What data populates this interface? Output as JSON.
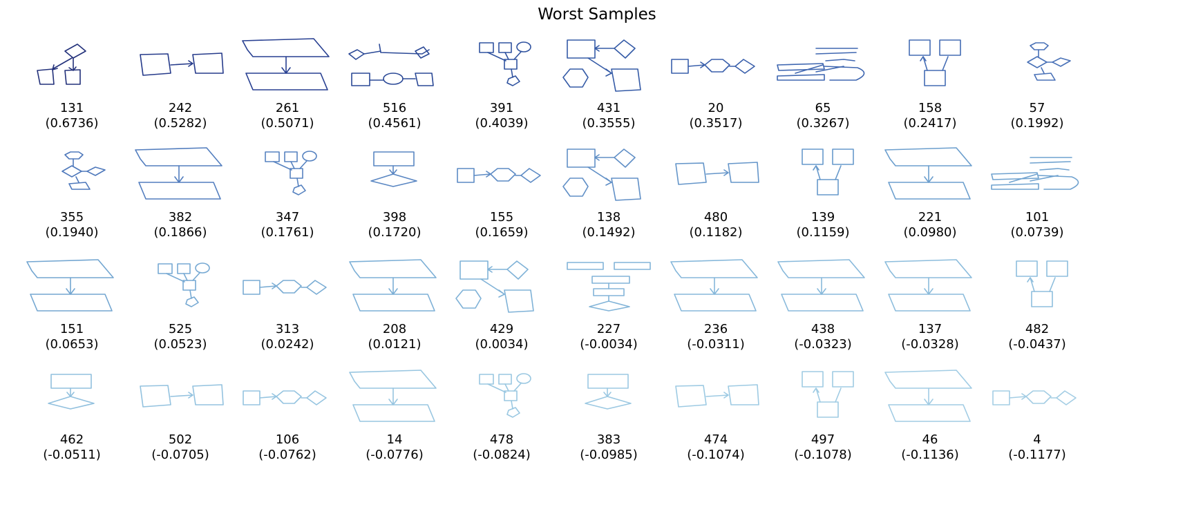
{
  "title": "Worst Samples",
  "samples": [
    {
      "id": "131",
      "score": "(0.6736)",
      "color": "#22307a",
      "shape": "a"
    },
    {
      "id": "242",
      "score": "(0.5282)",
      "color": "#253a8a",
      "shape": "b"
    },
    {
      "id": "261",
      "score": "(0.5071)",
      "color": "#273f91",
      "shape": "c"
    },
    {
      "id": "516",
      "score": "(0.4561)",
      "color": "#2a4896",
      "shape": "d"
    },
    {
      "id": "391",
      "score": "(0.4039)",
      "color": "#2f529f",
      "shape": "e"
    },
    {
      "id": "431",
      "score": "(0.3555)",
      "color": "#345aa6",
      "shape": "f"
    },
    {
      "id": "20",
      "score": "(0.3517)",
      "color": "#395fab",
      "shape": "g"
    },
    {
      "id": "65",
      "score": "(0.3267)",
      "color": "#3e66b0",
      "shape": "h"
    },
    {
      "id": "158",
      "score": "(0.2417)",
      "color": "#446cb4",
      "shape": "i"
    },
    {
      "id": "57",
      "score": "(0.1992)",
      "color": "#4971b7",
      "shape": "j"
    },
    {
      "id": "355",
      "score": "(0.1940)",
      "color": "#4e78bb",
      "shape": "j"
    },
    {
      "id": "382",
      "score": "(0.1866)",
      "color": "#527dbe",
      "shape": "c"
    },
    {
      "id": "347",
      "score": "(0.1761)",
      "color": "#5682c0",
      "shape": "e"
    },
    {
      "id": "398",
      "score": "(0.1720)",
      "color": "#5986c2",
      "shape": "k"
    },
    {
      "id": "155",
      "score": "(0.1659)",
      "color": "#5c8ac4",
      "shape": "g"
    },
    {
      "id": "138",
      "score": "(0.1492)",
      "color": "#608fc6",
      "shape": "f"
    },
    {
      "id": "480",
      "score": "(0.1182)",
      "color": "#6495c9",
      "shape": "b"
    },
    {
      "id": "139",
      "score": "(0.1159)",
      "color": "#6799cb",
      "shape": "i"
    },
    {
      "id": "221",
      "score": "(0.0980)",
      "color": "#6b9ecd",
      "shape": "c"
    },
    {
      "id": "101",
      "score": "(0.0739)",
      "color": "#6fa2cf",
      "shape": "h"
    },
    {
      "id": "151",
      "score": "(0.0653)",
      "color": "#73a6d1",
      "shape": "c"
    },
    {
      "id": "525",
      "score": "(0.0523)",
      "color": "#76a9d3",
      "shape": "e"
    },
    {
      "id": "313",
      "score": "(0.0242)",
      "color": "#79acd4",
      "shape": "g"
    },
    {
      "id": "208",
      "score": "(0.0121)",
      "color": "#7cafd6",
      "shape": "c"
    },
    {
      "id": "429",
      "score": "(0.0034)",
      "color": "#7fb2d7",
      "shape": "f"
    },
    {
      "id": "227",
      "score": "(-0.0034)",
      "color": "#82b4d8",
      "shape": "l"
    },
    {
      "id": "236",
      "score": "(-0.0311)",
      "color": "#85b7da",
      "shape": "c"
    },
    {
      "id": "438",
      "score": "(-0.0323)",
      "color": "#88b9db",
      "shape": "c"
    },
    {
      "id": "137",
      "score": "(-0.0328)",
      "color": "#8bbcdc",
      "shape": "c"
    },
    {
      "id": "482",
      "score": "(-0.0437)",
      "color": "#8ebedd",
      "shape": "i"
    },
    {
      "id": "462",
      "score": "(-0.0511)",
      "color": "#91c0de",
      "shape": "k"
    },
    {
      "id": "502",
      "score": "(-0.0705)",
      "color": "#93c2df",
      "shape": "b"
    },
    {
      "id": "106",
      "score": "(-0.0762)",
      "color": "#95c4e0",
      "shape": "g"
    },
    {
      "id": "14",
      "score": "(-0.0776)",
      "color": "#97c5e0",
      "shape": "c"
    },
    {
      "id": "478",
      "score": "(-0.0824)",
      "color": "#99c7e1",
      "shape": "e"
    },
    {
      "id": "383",
      "score": "(-0.0985)",
      "color": "#9bc8e2",
      "shape": "k"
    },
    {
      "id": "474",
      "score": "(-0.1074)",
      "color": "#9dcae3",
      "shape": "b"
    },
    {
      "id": "497",
      "score": "(-0.1078)",
      "color": "#9fcbe3",
      "shape": "i"
    },
    {
      "id": "46",
      "score": "(-0.1136)",
      "color": "#a1cce4",
      "shape": "c"
    },
    {
      "id": "4",
      "score": "(-0.1177)",
      "color": "#a3cde4",
      "shape": "g"
    }
  ]
}
